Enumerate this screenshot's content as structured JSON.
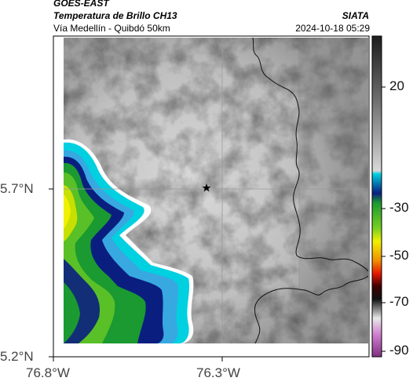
{
  "header": {
    "satellite": "GOES-EAST",
    "product": "Temperatura de Brillo CH13",
    "route": "Vía Medellín - Quibdó 50km",
    "org": "SIATA",
    "datetime": "2024-10-18 05:29"
  },
  "map": {
    "lat_ticks": [
      "5.7°N",
      "5.2°N"
    ],
    "lon_ticks": [
      "76.8°W",
      "76.3°W"
    ],
    "marker": "star",
    "colors": {
      "frame": "#000000",
      "grid": "#9a9a9a",
      "border": "#111111"
    }
  },
  "colorbar": {
    "labels": [
      "20",
      "-30",
      "-50",
      "-70",
      "-90"
    ],
    "colors": [
      "#1c1c1c",
      "#9b9b9b",
      "#d4d4d4",
      "#00c8d8",
      "#0a1e80",
      "#1fa830",
      "#f0f000",
      "#e81800",
      "#111111",
      "#c080c0"
    ]
  }
}
